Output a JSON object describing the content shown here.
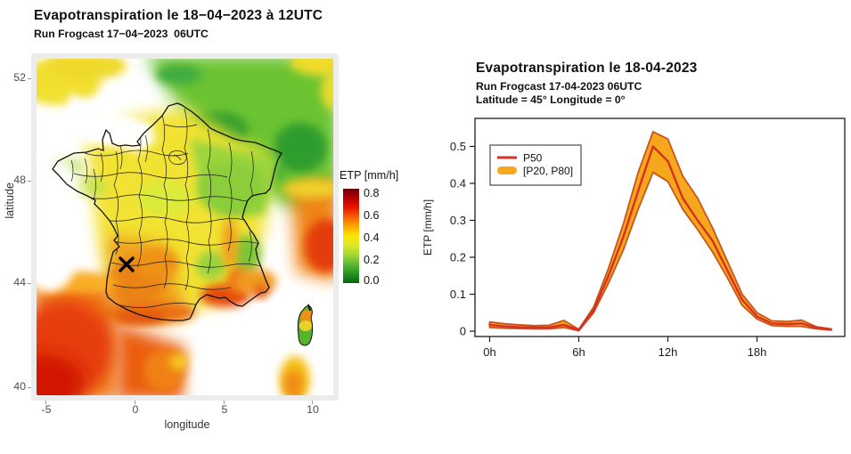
{
  "left_figure": {
    "title": "Evapotranspiration le 18−04−2023 à 12UTC",
    "subtitle": "Run Frogcast 17−04−2023  06UTC",
    "xlabel": "longitude",
    "ylabel": "latitude",
    "x_ticks": [
      "-5",
      "0",
      "5",
      "10"
    ],
    "y_ticks": [
      "52",
      "48",
      "44",
      "40"
    ],
    "colorbar": {
      "title": "ETP [mm/h]",
      "ticks": [
        "0.8",
        "0.6",
        "0.4",
        "0.2",
        "0.0"
      ],
      "colors": [
        "#6E0005",
        "#B80000",
        "#E81600",
        "#F65F00",
        "#FCA800",
        "#F9E500",
        "#D9E92C",
        "#A4D832",
        "#5CB832",
        "#259425",
        "#0A640A"
      ]
    },
    "marker": {
      "symbol": "X",
      "longitude": 0,
      "latitude": 45
    }
  },
  "right_figure": {
    "title": "Evapotranspiration le 18-04-2023",
    "subtitle": "Run Frogcast 17-04-2023 06UTC",
    "subtitle2": "Latitude = 45° Longitude = 0°",
    "ylabel": "ETP [mm/h]",
    "legend": {
      "p50_label": "P50",
      "band_label": "[P20, P80]"
    },
    "colors": {
      "p50": "#D93025",
      "band_fill": "#F5A81C",
      "band_edge": "#C8551B"
    }
  },
  "chart_data": [
    {
      "type": "heatmap",
      "title": "Evapotranspiration le 18−04−2023 à 12UTC",
      "subtitle": "Run Frogcast 17−04−2023  06UTC",
      "xlabel": "longitude",
      "ylabel": "latitude",
      "xlim": [
        -6.5,
        11
      ],
      "ylim": [
        39.5,
        53
      ],
      "x_ticks": [
        -5,
        0,
        5,
        10
      ],
      "y_ticks": [
        40,
        44,
        48,
        52
      ],
      "colorbar": {
        "title": "ETP [mm/h]",
        "range": [
          0.0,
          0.8
        ],
        "ticks": [
          0.0,
          0.2,
          0.4,
          0.6,
          0.8
        ]
      },
      "marker": {
        "symbol": "X",
        "longitude": 0,
        "latitude": 45
      },
      "field_summary": "ETP over France: yellow centre/west, green north-east, orange south-west, red Bay of Biscay and Mediterranean coastal areas; seas mostly white"
    },
    {
      "type": "line",
      "title": "Evapotranspiration le 18-04-2023",
      "subtitle": "Run Frogcast 17-04-2023 06UTC",
      "annotation": "Latitude = 45° Longitude = 0°",
      "xlabel": "",
      "ylabel": "ETP [mm/h]",
      "x_hours": [
        0,
        1,
        2,
        3,
        4,
        5,
        6,
        7,
        8,
        9,
        10,
        11,
        12,
        13,
        14,
        15,
        16,
        17,
        18,
        19,
        20,
        21,
        22,
        23
      ],
      "x_tick_hours": [
        0,
        6,
        12,
        18
      ],
      "x_tick_labels": [
        "0h",
        "6h",
        "12h",
        "18h"
      ],
      "y_ticks": [
        0,
        0.1,
        0.2,
        0.3,
        0.4,
        0.5
      ],
      "y_tick_labels": [
        "0",
        "0.1",
        "0.2",
        "0.3",
        "0.4",
        "0.5"
      ],
      "ylim": [
        0,
        0.59
      ],
      "grid": false,
      "legend_position": "upper-left",
      "series": [
        {
          "name": "P50",
          "values": [
            0.017,
            0.013,
            0.011,
            0.01,
            0.01,
            0.017,
            0.003,
            0.057,
            0.15,
            0.255,
            0.38,
            0.5,
            0.46,
            0.36,
            0.3,
            0.245,
            0.165,
            0.085,
            0.04,
            0.021,
            0.019,
            0.021,
            0.009,
            0.004
          ]
        }
      ],
      "band": {
        "name": "[P20, P80]",
        "upper": [
          0.025,
          0.02,
          0.017,
          0.015,
          0.016,
          0.029,
          0.005,
          0.065,
          0.17,
          0.29,
          0.43,
          0.54,
          0.52,
          0.42,
          0.36,
          0.28,
          0.19,
          0.1,
          0.05,
          0.028,
          0.026,
          0.03,
          0.012,
          0.006
        ],
        "lower": [
          0.01,
          0.008,
          0.007,
          0.006,
          0.006,
          0.01,
          0.001,
          0.05,
          0.13,
          0.22,
          0.33,
          0.43,
          0.405,
          0.33,
          0.275,
          0.215,
          0.145,
          0.07,
          0.033,
          0.015,
          0.013,
          0.013,
          0.006,
          0.003
        ]
      }
    }
  ]
}
